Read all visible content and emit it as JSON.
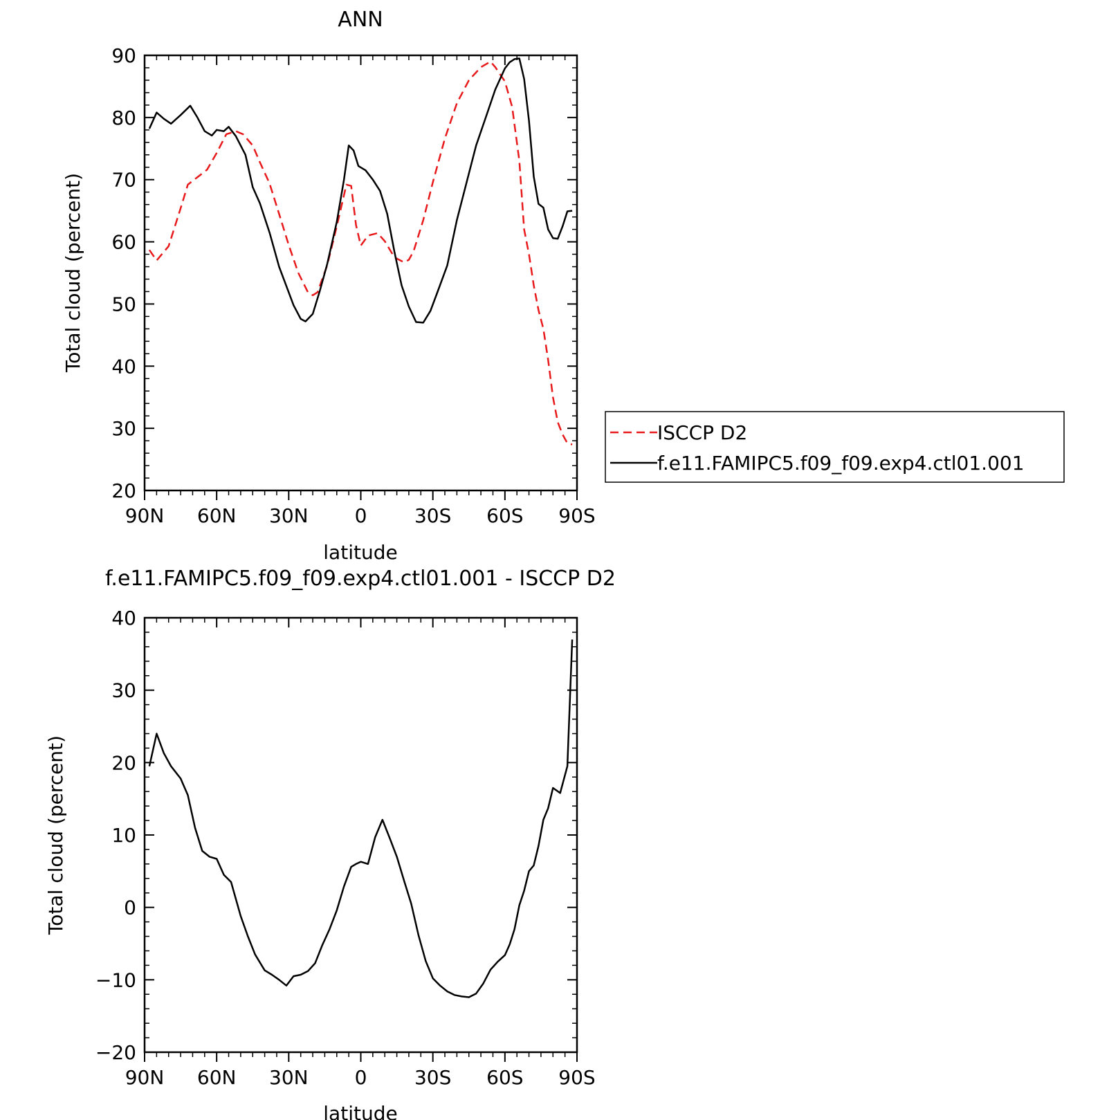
{
  "chart_data": [
    {
      "type": "line",
      "title": "ANN",
      "xlabel": "latitude",
      "ylabel": "Total cloud (percent)",
      "xlim": [
        90,
        -90
      ],
      "ylim": [
        20,
        90
      ],
      "x_ticks": [
        {
          "value": 90,
          "label": "90N"
        },
        {
          "value": 60,
          "label": "60N"
        },
        {
          "value": 30,
          "label": "30N"
        },
        {
          "value": 0,
          "label": "0"
        },
        {
          "value": -30,
          "label": "30S"
        },
        {
          "value": -60,
          "label": "60S"
        },
        {
          "value": -90,
          "label": "90S"
        }
      ],
      "y_ticks": [
        20,
        30,
        40,
        50,
        60,
        70,
        80,
        90
      ],
      "y_tick_labels": [
        "20",
        "30",
        "40",
        "50",
        "60",
        "70",
        "80",
        "90"
      ],
      "legend": "right",
      "series": [
        {
          "name": "ISCCP D2",
          "color": "#e8191b",
          "dash": true,
          "x": [
            88,
            85,
            80,
            75,
            72,
            68,
            64,
            60,
            56,
            52,
            49,
            45,
            42,
            38,
            34,
            30,
            26,
            22,
            20,
            18,
            14,
            10,
            6,
            4,
            2,
            0,
            -3,
            -7,
            -10,
            -14,
            -18,
            -20,
            -22,
            -26,
            -30,
            -35,
            -40,
            -45,
            -50,
            -54,
            -56,
            -60,
            -63,
            -66,
            -68,
            -70,
            -72,
            -74,
            -76,
            -78,
            -80,
            -82,
            -84,
            -86,
            -88
          ],
          "y": [
            58.7,
            57,
            59.3,
            65.4,
            69.2,
            70.4,
            71.6,
            74.3,
            77.3,
            77.8,
            77.3,
            75.5,
            72.8,
            69.4,
            64.5,
            59.5,
            55,
            51.9,
            51.4,
            51.9,
            56.2,
            62.5,
            69.2,
            69,
            62.7,
            59.4,
            61,
            61.4,
            60.1,
            57.5,
            56.7,
            57.1,
            58.5,
            63.5,
            69.6,
            76.6,
            82.3,
            86,
            88.1,
            89,
            88.1,
            85.8,
            81.7,
            73,
            62,
            58,
            53,
            49,
            46,
            41,
            35,
            31,
            29,
            27.6,
            27.4
          ]
        },
        {
          "name": "f.e11.FAMIPC5.f09_f09.exp4.ctl01.001",
          "color": "#000000",
          "dash": false,
          "x": [
            88,
            85,
            82,
            79,
            77,
            75,
            71,
            68,
            65,
            62,
            60,
            57,
            55,
            52,
            48,
            45,
            42,
            38,
            34,
            31,
            28,
            25,
            23,
            20,
            17,
            14,
            10,
            7,
            5,
            3,
            1,
            -2,
            -5,
            -8,
            -11,
            -14,
            -17,
            -20,
            -23,
            -26,
            -29,
            -32,
            -36,
            -40,
            -44,
            -48,
            -52,
            -56,
            -60,
            -62,
            -64,
            -66,
            -68,
            -70,
            -72,
            -74,
            -76,
            -78,
            -80,
            -82,
            -84,
            -86,
            -88
          ],
          "y": [
            78.2,
            80.8,
            79.8,
            79,
            79.7,
            80.4,
            81.9,
            80,
            77.8,
            77.1,
            78,
            77.8,
            78.5,
            77,
            74,
            68.8,
            66.2,
            61.5,
            56,
            52.9,
            49.8,
            47.6,
            47.2,
            48.4,
            52.2,
            56.4,
            63.2,
            70,
            75.5,
            74.7,
            72.2,
            71.5,
            70,
            68.2,
            64.5,
            58.4,
            53,
            49.6,
            47.1,
            47,
            48.9,
            52,
            56.2,
            63.5,
            69.5,
            75.5,
            80,
            84.5,
            87.9,
            88.9,
            89.4,
            89.5,
            86.2,
            79.5,
            70.5,
            66.1,
            65.5,
            62,
            60.6,
            60.5,
            62.5,
            64.9,
            65
          ]
        }
      ]
    },
    {
      "type": "line",
      "title": "f.e11.FAMIPC5.f09_f09.exp4.ctl01.001 - ISCCP D2",
      "xlabel": "latitude",
      "ylabel": "Total cloud (percent)",
      "xlim": [
        90,
        -90
      ],
      "ylim": [
        -20,
        40
      ],
      "x_ticks": [
        {
          "value": 90,
          "label": "90N"
        },
        {
          "value": 60,
          "label": "60N"
        },
        {
          "value": 30,
          "label": "30N"
        },
        {
          "value": 0,
          "label": "0"
        },
        {
          "value": -30,
          "label": "30S"
        },
        {
          "value": -60,
          "label": "60S"
        },
        {
          "value": -90,
          "label": "90S"
        }
      ],
      "y_ticks": [
        -20,
        -10,
        0,
        10,
        20,
        30,
        40
      ],
      "y_tick_labels": [
        "−20",
        "−10",
        "0",
        "10",
        "20",
        "30",
        "40"
      ],
      "series": [
        {
          "color": "#000000",
          "dash": false,
          "x": [
            88,
            85,
            82,
            79,
            75,
            72,
            69,
            66,
            63,
            60,
            57,
            54,
            50,
            47,
            44,
            40,
            37,
            34,
            31,
            28,
            25,
            22,
            19,
            16,
            13,
            10,
            7,
            4,
            2,
            0,
            -3,
            -6,
            -9,
            -12,
            -15,
            -18,
            -21,
            -24,
            -27,
            -30,
            -33,
            -36,
            -39,
            -42,
            -45,
            -48,
            -51,
            -54,
            -57,
            -60,
            -62,
            -64,
            -66,
            -68,
            -70,
            -72,
            -74,
            -76,
            -78,
            -80,
            -83,
            -86,
            -88
          ],
          "y": [
            19.5,
            24,
            21.3,
            19.5,
            17.8,
            15.5,
            11,
            7.8,
            7,
            6.7,
            4.5,
            3.5,
            -1.2,
            -4,
            -6.5,
            -8.7,
            -9.3,
            -10,
            -10.8,
            -9.5,
            -9.3,
            -8.8,
            -7.7,
            -5.2,
            -3,
            -0.4,
            2.9,
            5.6,
            6,
            6.3,
            6,
            9.7,
            12.1,
            9.6,
            7,
            3.7,
            0.5,
            -3.8,
            -7.4,
            -9.8,
            -10.8,
            -11.6,
            -12.1,
            -12.3,
            -12.4,
            -11.9,
            -10.5,
            -8.6,
            -7.5,
            -6.6,
            -5.1,
            -3,
            0.3,
            2.3,
            5,
            5.8,
            8.5,
            12.1,
            13.7,
            16.5,
            15.8,
            19.5,
            37
          ]
        }
      ]
    }
  ]
}
